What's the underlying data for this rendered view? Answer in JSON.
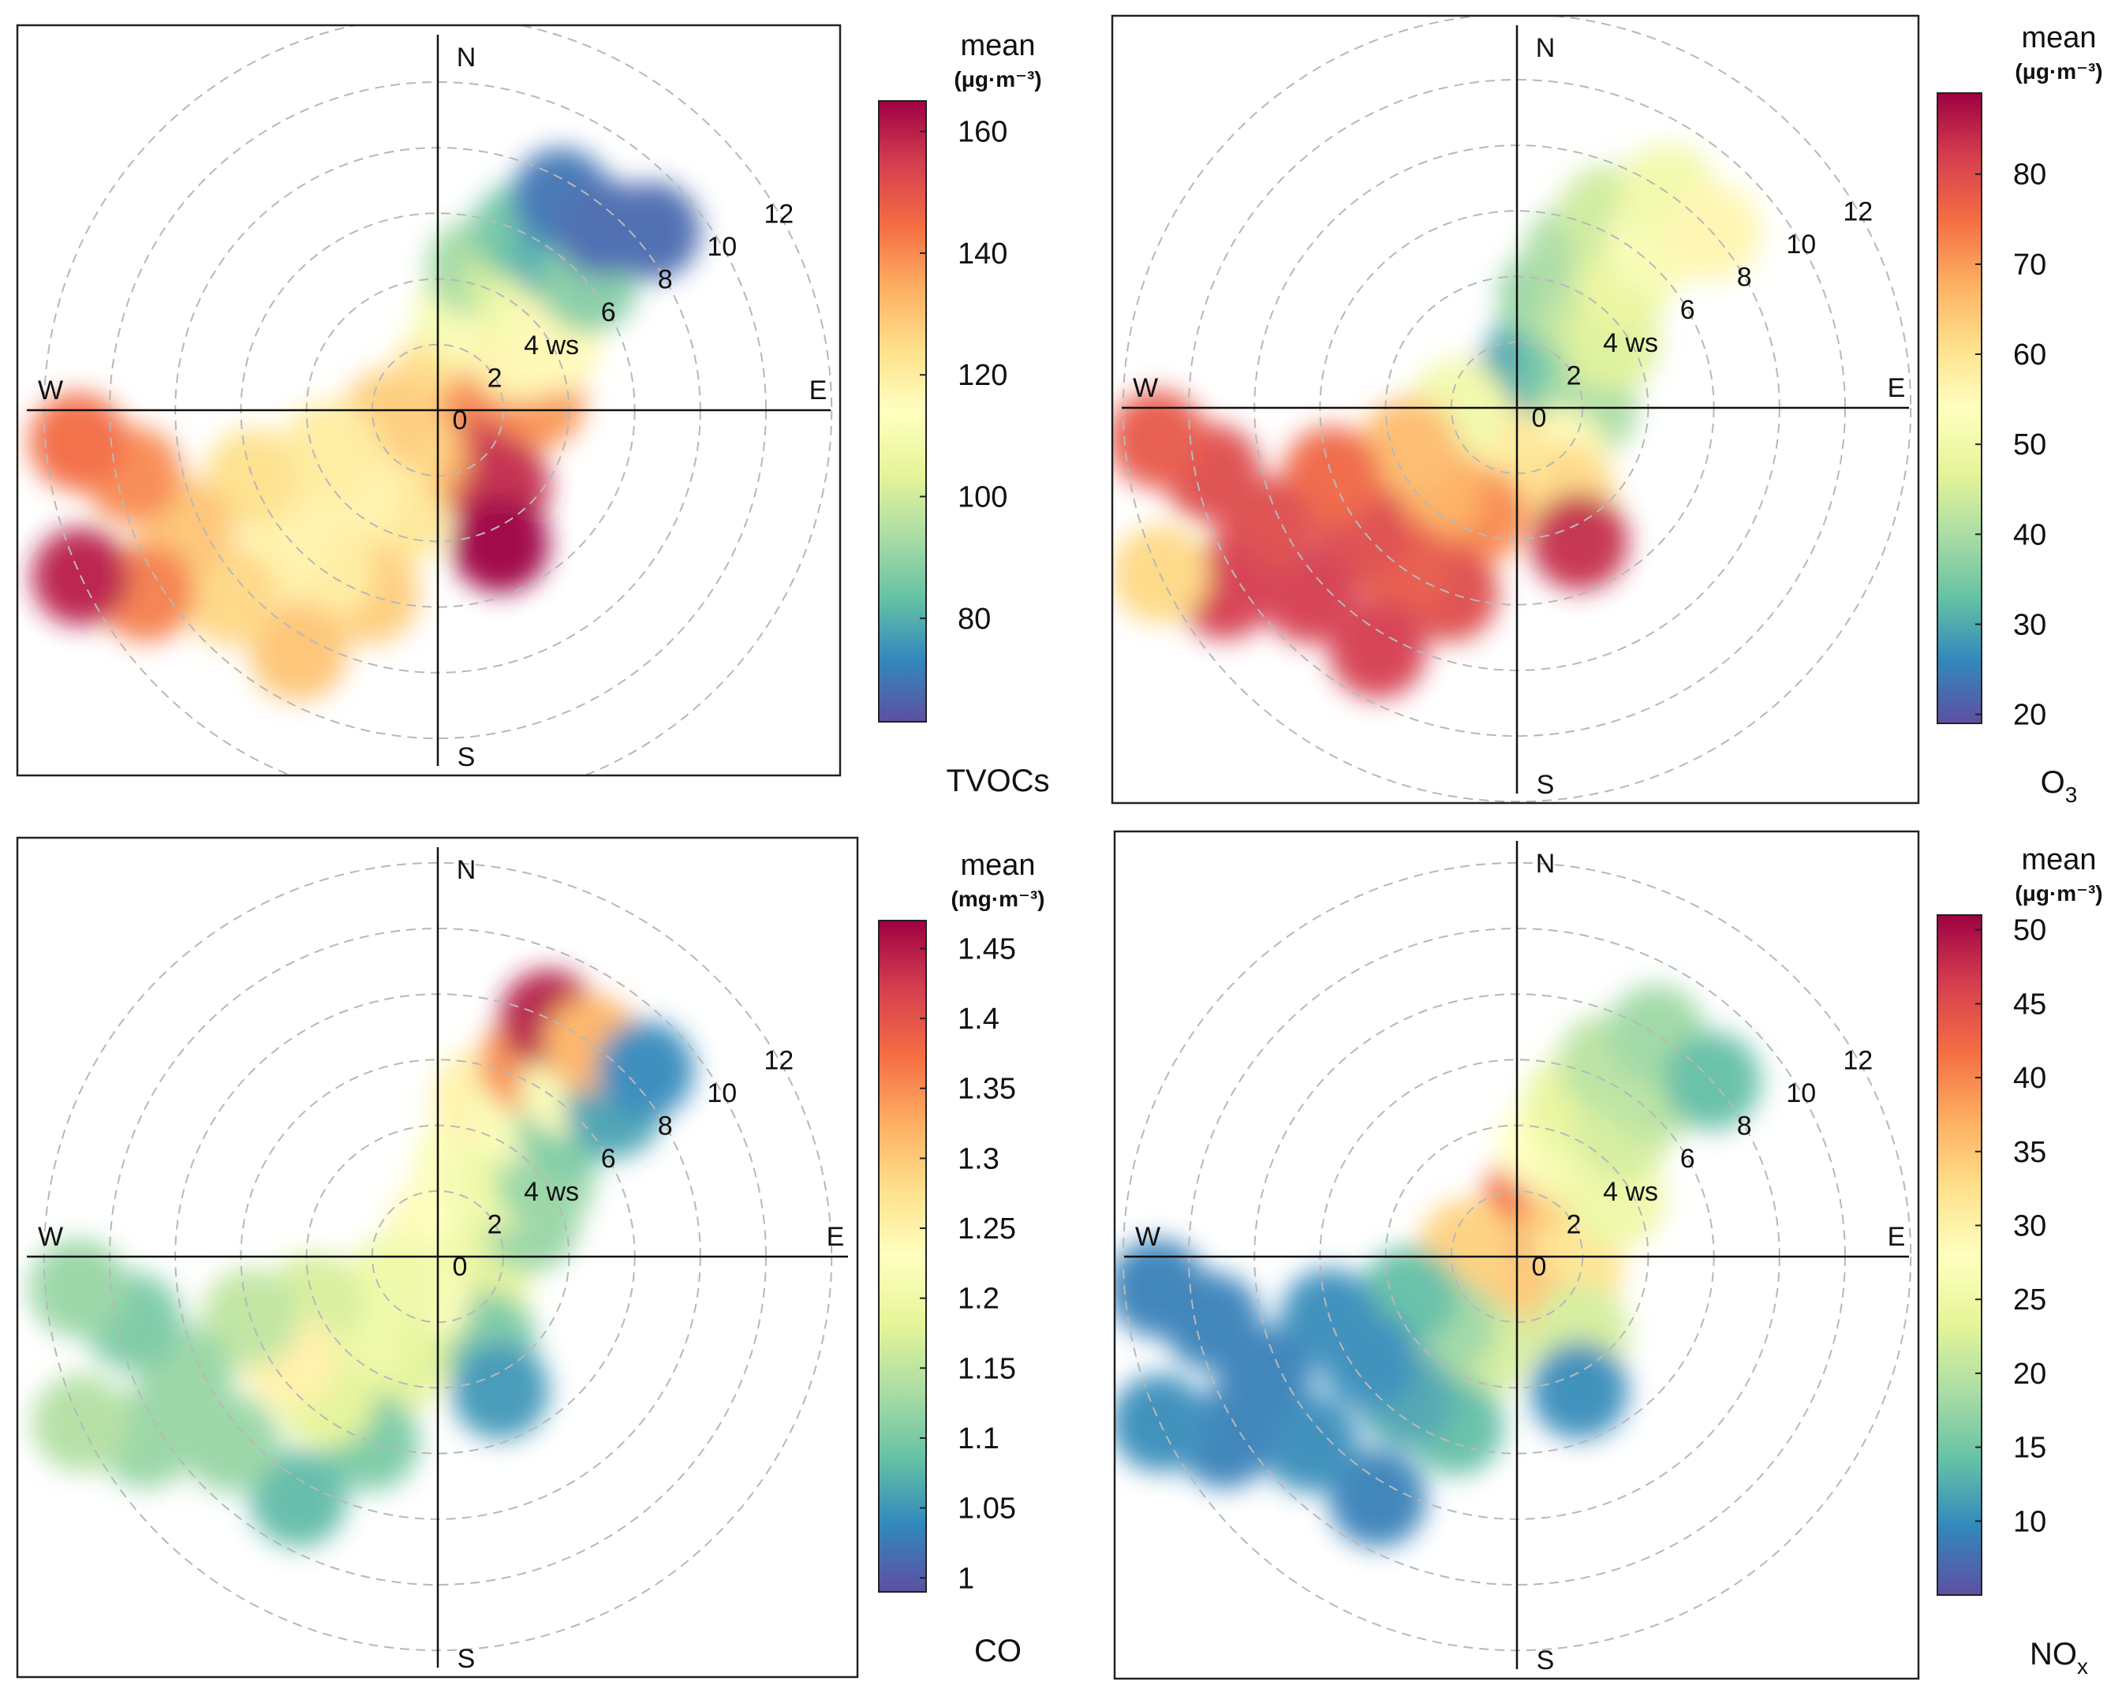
{
  "chart_data": [
    {
      "type": "polar-heatmap",
      "title": "",
      "pollutant_label": "TVOCs",
      "legend_title": "mean",
      "unit": "(μg·m⁻³)",
      "compass": {
        "north": "N",
        "south": "S",
        "east": "E",
        "west": "W"
      },
      "ring_labels": [
        "0",
        "2",
        "4 ws",
        "6",
        "8",
        "10",
        "12"
      ],
      "ring_values": [
        0,
        2,
        4,
        6,
        8,
        10,
        12
      ],
      "ws_range": [
        0,
        12.5
      ],
      "color_range": [
        63,
        165
      ],
      "colorbar_ticks": [
        {
          "value": 80,
          "label": "80"
        },
        {
          "value": 100,
          "label": "100"
        },
        {
          "value": 120,
          "label": "120"
        },
        {
          "value": 140,
          "label": "140"
        },
        {
          "value": 160,
          "label": "160"
        }
      ],
      "cells": [
        {
          "dir": 0,
          "ws": 1,
          "value": 118
        },
        {
          "dir": 20,
          "ws": 1,
          "value": 125
        },
        {
          "dir": 45,
          "ws": 1,
          "value": 125
        },
        {
          "dir": 60,
          "ws": 2,
          "value": 122
        },
        {
          "dir": 80,
          "ws": 2,
          "value": 130
        },
        {
          "dir": 85,
          "ws": 3,
          "value": 138
        },
        {
          "dir": 100,
          "ws": 1.5,
          "value": 140
        },
        {
          "dir": 150,
          "ws": 2,
          "value": 155
        },
        {
          "dir": 140,
          "ws": 3,
          "value": 158
        },
        {
          "dir": 155,
          "ws": 4.5,
          "value": 165
        },
        {
          "dir": 15,
          "ws": 3,
          "value": 110
        },
        {
          "dir": 35,
          "ws": 3,
          "value": 112
        },
        {
          "dir": 55,
          "ws": 3,
          "value": 118
        },
        {
          "dir": 15,
          "ws": 4.5,
          "value": 92
        },
        {
          "dir": 30,
          "ws": 4.5,
          "value": 100
        },
        {
          "dir": 45,
          "ws": 4,
          "value": 108
        },
        {
          "dir": 60,
          "ws": 4,
          "value": 116
        },
        {
          "dir": 25,
          "ws": 6,
          "value": 85
        },
        {
          "dir": 38,
          "ws": 6,
          "value": 80
        },
        {
          "dir": 50,
          "ws": 6,
          "value": 88
        },
        {
          "dir": 30,
          "ws": 7.5,
          "value": 70
        },
        {
          "dir": 42,
          "ws": 7.5,
          "value": 68
        },
        {
          "dir": 50,
          "ws": 8.5,
          "value": 68
        },
        {
          "dir": 200,
          "ws": 1.5,
          "value": 135
        },
        {
          "dir": 230,
          "ws": 1.5,
          "value": 125
        },
        {
          "dir": 260,
          "ws": 1.5,
          "value": 128
        },
        {
          "dir": 200,
          "ws": 3.5,
          "value": 122
        },
        {
          "dir": 225,
          "ws": 3.5,
          "value": 118
        },
        {
          "dir": 250,
          "ws": 3.5,
          "value": 120
        },
        {
          "dir": 200,
          "ws": 6,
          "value": 128
        },
        {
          "dir": 215,
          "ws": 6,
          "value": 120
        },
        {
          "dir": 230,
          "ws": 6,
          "value": 118
        },
        {
          "dir": 250,
          "ws": 6,
          "value": 124
        },
        {
          "dir": 210,
          "ws": 8.5,
          "value": 130
        },
        {
          "dir": 228,
          "ws": 8.5,
          "value": 126
        },
        {
          "dir": 245,
          "ws": 8.5,
          "value": 130
        },
        {
          "dir": 258,
          "ws": 9.5,
          "value": 140
        },
        {
          "dir": 238,
          "ws": 10.5,
          "value": 142
        },
        {
          "dir": 265,
          "ws": 11,
          "value": 145
        },
        {
          "dir": 245,
          "ws": 12,
          "value": 160
        }
      ]
    },
    {
      "type": "polar-heatmap",
      "title": "",
      "pollutant_label": "O",
      "pollutant_sub": "3",
      "legend_title": "mean",
      "unit": "(μg·m⁻³)",
      "compass": {
        "north": "N",
        "south": "S",
        "east": "E",
        "west": "W"
      },
      "ring_labels": [
        "0",
        "2",
        "4 ws",
        "6",
        "8",
        "10",
        "12"
      ],
      "ring_values": [
        0,
        2,
        4,
        6,
        8,
        10,
        12
      ],
      "ws_range": [
        0,
        12.5
      ],
      "color_range": [
        19,
        89
      ],
      "colorbar_ticks": [
        {
          "value": 20,
          "label": "20"
        },
        {
          "value": 30,
          "label": "30"
        },
        {
          "value": 40,
          "label": "40"
        },
        {
          "value": 50,
          "label": "50"
        },
        {
          "value": 60,
          "label": "60"
        },
        {
          "value": 70,
          "label": "70"
        },
        {
          "value": 80,
          "label": "80"
        }
      ],
      "cells": [
        {
          "dir": 0,
          "ws": 0.6,
          "value": 20
        },
        {
          "dir": 90,
          "ws": 0.6,
          "value": 22
        },
        {
          "dir": 180,
          "ws": 0.6,
          "value": 30
        },
        {
          "dir": 270,
          "ws": 0.6,
          "value": 28
        },
        {
          "dir": 20,
          "ws": 1.8,
          "value": 30
        },
        {
          "dir": 60,
          "ws": 1.8,
          "value": 34
        },
        {
          "dir": 90,
          "ws": 2.2,
          "value": 40
        },
        {
          "dir": 140,
          "ws": 2,
          "value": 55
        },
        {
          "dir": 150,
          "ws": 3,
          "value": 62
        },
        {
          "dir": 155,
          "ws": 4.5,
          "value": 84
        },
        {
          "dir": 15,
          "ws": 3.5,
          "value": 38
        },
        {
          "dir": 35,
          "ws": 3.5,
          "value": 42
        },
        {
          "dir": 55,
          "ws": 3.5,
          "value": 46
        },
        {
          "dir": 20,
          "ws": 5,
          "value": 40
        },
        {
          "dir": 40,
          "ws": 5,
          "value": 48
        },
        {
          "dir": 25,
          "ws": 6.5,
          "value": 44
        },
        {
          "dir": 40,
          "ws": 6.5,
          "value": 52
        },
        {
          "dir": 35,
          "ws": 8,
          "value": 50
        },
        {
          "dir": 48,
          "ws": 8,
          "value": 56
        },
        {
          "dir": 200,
          "ws": 1.5,
          "value": 60
        },
        {
          "dir": 240,
          "ws": 1.5,
          "value": 58
        },
        {
          "dir": 270,
          "ws": 1.8,
          "value": 50
        },
        {
          "dir": 200,
          "ws": 3.5,
          "value": 72
        },
        {
          "dir": 225,
          "ws": 3.5,
          "value": 68
        },
        {
          "dir": 250,
          "ws": 3.5,
          "value": 66
        },
        {
          "dir": 200,
          "ws": 6,
          "value": 80
        },
        {
          "dir": 215,
          "ws": 6,
          "value": 78
        },
        {
          "dir": 232,
          "ws": 6,
          "value": 80
        },
        {
          "dir": 250,
          "ws": 6,
          "value": 76
        },
        {
          "dir": 210,
          "ws": 8.5,
          "value": 82
        },
        {
          "dir": 228,
          "ws": 8.5,
          "value": 82
        },
        {
          "dir": 245,
          "ws": 8.5,
          "value": 80
        },
        {
          "dir": 258,
          "ws": 9.5,
          "value": 80
        },
        {
          "dir": 238,
          "ws": 10.5,
          "value": 82
        },
        {
          "dir": 265,
          "ws": 11,
          "value": 78
        },
        {
          "dir": 245,
          "ws": 12,
          "value": 62
        }
      ]
    },
    {
      "type": "polar-heatmap",
      "title": "",
      "pollutant_label": "CO",
      "legend_title": "mean",
      "unit": "(mg·m⁻³)",
      "compass": {
        "north": "N",
        "south": "S",
        "east": "E",
        "west": "W"
      },
      "ring_labels": [
        "0",
        "2",
        "4 ws",
        "6",
        "8",
        "10",
        "12"
      ],
      "ring_values": [
        0,
        2,
        4,
        6,
        8,
        10,
        12
      ],
      "ws_range": [
        0,
        12.5
      ],
      "color_range": [
        0.99,
        1.47
      ],
      "colorbar_ticks": [
        {
          "value": 1.0,
          "label": "1"
        },
        {
          "value": 1.05,
          "label": "1.05"
        },
        {
          "value": 1.1,
          "label": "1.1"
        },
        {
          "value": 1.15,
          "label": "1.15"
        },
        {
          "value": 1.2,
          "label": "1.2"
        },
        {
          "value": 1.25,
          "label": "1.25"
        },
        {
          "value": 1.3,
          "label": "1.3"
        },
        {
          "value": 1.35,
          "label": "1.35"
        },
        {
          "value": 1.4,
          "label": "1.4"
        },
        {
          "value": 1.45,
          "label": "1.45"
        }
      ],
      "cells": [
        {
          "dir": 0,
          "ws": 1,
          "value": 1.24
        },
        {
          "dir": 45,
          "ws": 1,
          "value": 1.23
        },
        {
          "dir": 90,
          "ws": 1.5,
          "value": 1.2
        },
        {
          "dir": 70,
          "ws": 3,
          "value": 1.12
        },
        {
          "dir": 140,
          "ws": 2,
          "value": 1.18
        },
        {
          "dir": 150,
          "ws": 3,
          "value": 1.1
        },
        {
          "dir": 155,
          "ws": 4.5,
          "value": 1.05
        },
        {
          "dir": 15,
          "ws": 3,
          "value": 1.22
        },
        {
          "dir": 40,
          "ws": 3,
          "value": 1.2
        },
        {
          "dir": 55,
          "ws": 4,
          "value": 1.12
        },
        {
          "dir": 15,
          "ws": 5,
          "value": 1.25
        },
        {
          "dir": 30,
          "ws": 5,
          "value": 1.22
        },
        {
          "dir": 45,
          "ws": 5.5,
          "value": 1.1
        },
        {
          "dir": 25,
          "ws": 6.5,
          "value": 1.35
        },
        {
          "dir": 38,
          "ws": 6.5,
          "value": 1.22
        },
        {
          "dir": 50,
          "ws": 7,
          "value": 1.06
        },
        {
          "dir": 25,
          "ws": 8,
          "value": 1.45
        },
        {
          "dir": 36,
          "ws": 8,
          "value": 1.32
        },
        {
          "dir": 48,
          "ws": 8.5,
          "value": 1.04
        },
        {
          "dir": 200,
          "ws": 1.5,
          "value": 1.22
        },
        {
          "dir": 240,
          "ws": 1.5,
          "value": 1.2
        },
        {
          "dir": 200,
          "ws": 3.5,
          "value": 1.18
        },
        {
          "dir": 225,
          "ws": 3.5,
          "value": 1.2
        },
        {
          "dir": 250,
          "ws": 4,
          "value": 1.17
        },
        {
          "dir": 200,
          "ws": 6,
          "value": 1.1
        },
        {
          "dir": 218,
          "ws": 5.5,
          "value": 1.18
        },
        {
          "dir": 235,
          "ws": 5.5,
          "value": 1.25
        },
        {
          "dir": 252,
          "ws": 6,
          "value": 1.15
        },
        {
          "dir": 210,
          "ws": 8.5,
          "value": 1.08
        },
        {
          "dir": 228,
          "ws": 8.5,
          "value": 1.12
        },
        {
          "dir": 245,
          "ws": 8.5,
          "value": 1.12
        },
        {
          "dir": 258,
          "ws": 9.5,
          "value": 1.1
        },
        {
          "dir": 238,
          "ws": 10.5,
          "value": 1.12
        },
        {
          "dir": 265,
          "ws": 11,
          "value": 1.12
        },
        {
          "dir": 245,
          "ws": 12,
          "value": 1.14
        }
      ]
    },
    {
      "type": "polar-heatmap",
      "title": "",
      "pollutant_label": "NO",
      "pollutant_sub": "x",
      "legend_title": "mean",
      "unit": "(μg·m⁻³)",
      "compass": {
        "north": "N",
        "south": "S",
        "east": "E",
        "west": "W"
      },
      "ring_labels": [
        "0",
        "2",
        "4 ws",
        "6",
        "8",
        "10",
        "12"
      ],
      "ring_values": [
        0,
        2,
        4,
        6,
        8,
        10,
        12
      ],
      "ws_range": [
        0,
        12.5
      ],
      "color_range": [
        5,
        51
      ],
      "colorbar_ticks": [
        {
          "value": 10,
          "label": "10"
        },
        {
          "value": 15,
          "label": "15"
        },
        {
          "value": 20,
          "label": "20"
        },
        {
          "value": 25,
          "label": "25"
        },
        {
          "value": 30,
          "label": "30"
        },
        {
          "value": 35,
          "label": "35"
        },
        {
          "value": 40,
          "label": "40"
        },
        {
          "value": 45,
          "label": "45"
        },
        {
          "value": 50,
          "label": "50"
        }
      ],
      "cells": [
        {
          "dir": 0,
          "ws": 0.5,
          "value": 50
        },
        {
          "dir": 120,
          "ws": 0.5,
          "value": 48
        },
        {
          "dir": 240,
          "ws": 0.5,
          "value": 48
        },
        {
          "dir": 15,
          "ws": 1.8,
          "value": 42
        },
        {
          "dir": 60,
          "ws": 1.8,
          "value": 35
        },
        {
          "dir": 100,
          "ws": 1.8,
          "value": 32
        },
        {
          "dir": 180,
          "ws": 1.5,
          "value": 35
        },
        {
          "dir": 280,
          "ws": 1.5,
          "value": 34
        },
        {
          "dir": 140,
          "ws": 3,
          "value": 22
        },
        {
          "dir": 155,
          "ws": 4.5,
          "value": 10
        },
        {
          "dir": 15,
          "ws": 3.5,
          "value": 28
        },
        {
          "dir": 35,
          "ws": 3.5,
          "value": 26
        },
        {
          "dir": 60,
          "ws": 3.5,
          "value": 25
        },
        {
          "dir": 20,
          "ws": 5,
          "value": 24
        },
        {
          "dir": 40,
          "ws": 5,
          "value": 22
        },
        {
          "dir": 25,
          "ws": 6.5,
          "value": 20
        },
        {
          "dir": 40,
          "ws": 6.5,
          "value": 20
        },
        {
          "dir": 32,
          "ws": 8,
          "value": 18
        },
        {
          "dir": 48,
          "ws": 8,
          "value": 14
        },
        {
          "dir": 200,
          "ws": 3,
          "value": 22
        },
        {
          "dir": 225,
          "ws": 3,
          "value": 18
        },
        {
          "dir": 250,
          "ws": 3.5,
          "value": 14
        },
        {
          "dir": 200,
          "ws": 5.5,
          "value": 14
        },
        {
          "dir": 218,
          "ws": 5.5,
          "value": 12
        },
        {
          "dir": 235,
          "ws": 5.5,
          "value": 10
        },
        {
          "dir": 252,
          "ws": 6,
          "value": 10
        },
        {
          "dir": 210,
          "ws": 8.5,
          "value": 9
        },
        {
          "dir": 228,
          "ws": 8.5,
          "value": 10
        },
        {
          "dir": 245,
          "ws": 8.5,
          "value": 9
        },
        {
          "dir": 258,
          "ws": 9.5,
          "value": 9
        },
        {
          "dir": 238,
          "ws": 10.5,
          "value": 9
        },
        {
          "dir": 265,
          "ws": 11,
          "value": 9
        },
        {
          "dir": 245,
          "ws": 12,
          "value": 10
        }
      ]
    }
  ],
  "colormap": [
    "#5E4FA2",
    "#3288BD",
    "#66C2A5",
    "#ABDDA4",
    "#E6F598",
    "#FFFFBF",
    "#FEE08B",
    "#FDAE61",
    "#F46D43",
    "#D53E4F",
    "#9E0142"
  ]
}
